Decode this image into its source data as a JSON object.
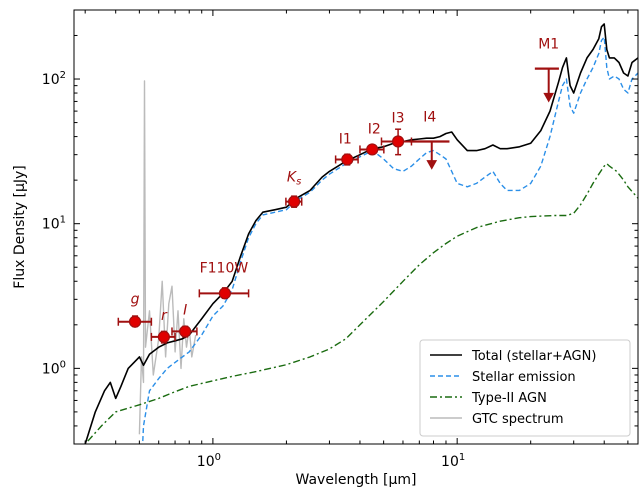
{
  "chart_data": {
    "type": "line",
    "xscale": "log",
    "yscale": "log",
    "xlim": [
      0.27,
      55
    ],
    "ylim": [
      0.3,
      300
    ],
    "xlabel": "Wavelength [μm]",
    "ylabel": "Flux Density [μJy]",
    "x_ticks": [
      {
        "value": 1,
        "base": "10",
        "exp": "0"
      },
      {
        "value": 10,
        "base": "10",
        "exp": "1"
      }
    ],
    "y_ticks": [
      {
        "value": 1,
        "base": "10",
        "exp": "0"
      },
      {
        "value": 10,
        "base": "10",
        "exp": "1"
      },
      {
        "value": 100,
        "base": "10",
        "exp": "2"
      }
    ],
    "legend_position": "bottom-right",
    "legend": [
      {
        "label": "Total (stellar+AGN)",
        "color": "#000000",
        "dash": "solid"
      },
      {
        "label": "Stellar emission",
        "color": "#2b8fe8",
        "dash": "dashed"
      },
      {
        "label": "Type-II AGN",
        "color": "#1a6b10",
        "dash": "dashdot"
      },
      {
        "label": "GTC spectrum",
        "color": "#bbbbbb",
        "dash": "solid"
      }
    ],
    "series": [
      {
        "name": "Total (stellar+AGN)",
        "color": "#000000",
        "dash": "solid",
        "points": [
          [
            0.27,
            0.18
          ],
          [
            0.3,
            0.3
          ],
          [
            0.33,
            0.5
          ],
          [
            0.36,
            0.7
          ],
          [
            0.38,
            0.8
          ],
          [
            0.4,
            0.62
          ],
          [
            0.42,
            0.75
          ],
          [
            0.45,
            1.0
          ],
          [
            0.5,
            1.2
          ],
          [
            0.52,
            1.05
          ],
          [
            0.55,
            1.25
          ],
          [
            0.6,
            1.4
          ],
          [
            0.65,
            1.5
          ],
          [
            0.7,
            1.55
          ],
          [
            0.75,
            1.6
          ],
          [
            0.8,
            1.7
          ],
          [
            0.9,
            2.2
          ],
          [
            1.0,
            2.8
          ],
          [
            1.1,
            3.3
          ],
          [
            1.2,
            4.0
          ],
          [
            1.3,
            6.0
          ],
          [
            1.4,
            8.5
          ],
          [
            1.5,
            10.5
          ],
          [
            1.6,
            12.0
          ],
          [
            1.8,
            12.5
          ],
          [
            2.0,
            13.0
          ],
          [
            2.2,
            15.0
          ],
          [
            2.5,
            17.0
          ],
          [
            2.8,
            21.0
          ],
          [
            3.0,
            23.0
          ],
          [
            3.5,
            27.0
          ],
          [
            4.0,
            30.0
          ],
          [
            4.5,
            33.0
          ],
          [
            5.0,
            34.0
          ],
          [
            5.5,
            36.0
          ],
          [
            6.0,
            37.0
          ],
          [
            6.5,
            38.0
          ],
          [
            7.0,
            38.5
          ],
          [
            7.5,
            39.0
          ],
          [
            8.0,
            39.0
          ],
          [
            8.5,
            40.0
          ],
          [
            9.0,
            42.0
          ],
          [
            9.5,
            43.0
          ],
          [
            10.0,
            38.0
          ],
          [
            11.0,
            32.0
          ],
          [
            12.0,
            32.0
          ],
          [
            13.0,
            33.0
          ],
          [
            14.0,
            35.0
          ],
          [
            15.0,
            33.0
          ],
          [
            16.0,
            33.0
          ],
          [
            18.0,
            34.0
          ],
          [
            20.0,
            36.0
          ],
          [
            22.0,
            44.0
          ],
          [
            24.0,
            60.0
          ],
          [
            26.0,
            95.0
          ],
          [
            27.0,
            120.0
          ],
          [
            28.0,
            140.0
          ],
          [
            29.0,
            90.0
          ],
          [
            30.0,
            80.0
          ],
          [
            32.0,
            110.0
          ],
          [
            34.0,
            140.0
          ],
          [
            36.0,
            160.0
          ],
          [
            38.0,
            190.0
          ],
          [
            39.0,
            230.0
          ],
          [
            40.0,
            240.0
          ],
          [
            41.0,
            160.0
          ],
          [
            42.0,
            140.0
          ],
          [
            44.0,
            140.0
          ],
          [
            46.0,
            130.0
          ],
          [
            48.0,
            110.0
          ],
          [
            50.0,
            105.0
          ],
          [
            52.0,
            130.0
          ],
          [
            55.0,
            140.0
          ]
        ]
      },
      {
        "name": "Stellar emission",
        "color": "#2b8fe8",
        "dash": "dashed",
        "points": [
          [
            0.5,
            0.1
          ],
          [
            0.52,
            0.4
          ],
          [
            0.55,
            0.7
          ],
          [
            0.6,
            0.85
          ],
          [
            0.65,
            1.0
          ],
          [
            0.7,
            1.1
          ],
          [
            0.75,
            1.2
          ],
          [
            0.8,
            1.3
          ],
          [
            0.9,
            1.7
          ],
          [
            1.0,
            2.3
          ],
          [
            1.1,
            2.7
          ],
          [
            1.2,
            3.5
          ],
          [
            1.3,
            5.5
          ],
          [
            1.4,
            8.0
          ],
          [
            1.5,
            10.0
          ],
          [
            1.6,
            11.5
          ],
          [
            1.8,
            12.0
          ],
          [
            2.0,
            12.5
          ],
          [
            2.2,
            14.5
          ],
          [
            2.5,
            16.5
          ],
          [
            2.8,
            20.0
          ],
          [
            3.0,
            22.0
          ],
          [
            3.5,
            26.0
          ],
          [
            4.0,
            29.0
          ],
          [
            4.5,
            32.0
          ],
          [
            5.0,
            28.0
          ],
          [
            5.5,
            24.0
          ],
          [
            6.0,
            23.0
          ],
          [
            6.5,
            25.0
          ],
          [
            7.0,
            28.0
          ],
          [
            7.5,
            31.0
          ],
          [
            8.0,
            32.0
          ],
          [
            8.5,
            30.0
          ],
          [
            9.0,
            28.0
          ],
          [
            10.0,
            19.0
          ],
          [
            11.0,
            18.0
          ],
          [
            12.0,
            19.0
          ],
          [
            13.0,
            21.0
          ],
          [
            14.0,
            23.0
          ],
          [
            15.0,
            19.0
          ],
          [
            16.0,
            17.0
          ],
          [
            18.0,
            17.0
          ],
          [
            20.0,
            19.0
          ],
          [
            22.0,
            25.0
          ],
          [
            24.0,
            40.0
          ],
          [
            26.0,
            70.0
          ],
          [
            27.0,
            90.0
          ],
          [
            28.0,
            100.0
          ],
          [
            29.0,
            65.0
          ],
          [
            30.0,
            58.0
          ],
          [
            32.0,
            80.0
          ],
          [
            34.0,
            100.0
          ],
          [
            36.0,
            120.0
          ],
          [
            38.0,
            150.0
          ],
          [
            39.0,
            185.0
          ],
          [
            40.0,
            195.0
          ],
          [
            41.0,
            120.0
          ],
          [
            42.0,
            100.0
          ],
          [
            44.0,
            105.0
          ],
          [
            46.0,
            100.0
          ],
          [
            48.0,
            85.0
          ],
          [
            50.0,
            80.0
          ],
          [
            52.0,
            100.0
          ],
          [
            55.0,
            110.0
          ]
        ]
      },
      {
        "name": "Type-II AGN",
        "color": "#1a6b10",
        "dash": "dashdot",
        "points": [
          [
            0.27,
            0.16
          ],
          [
            0.3,
            0.3
          ],
          [
            0.35,
            0.4
          ],
          [
            0.4,
            0.5
          ],
          [
            0.5,
            0.56
          ],
          [
            0.6,
            0.62
          ],
          [
            0.7,
            0.69
          ],
          [
            0.8,
            0.75
          ],
          [
            1.0,
            0.82
          ],
          [
            1.2,
            0.88
          ],
          [
            1.5,
            0.95
          ],
          [
            2.0,
            1.06
          ],
          [
            2.5,
            1.2
          ],
          [
            3.0,
            1.36
          ],
          [
            3.5,
            1.6
          ],
          [
            4.0,
            2.0
          ],
          [
            5.0,
            2.9
          ],
          [
            6.0,
            4.0
          ],
          [
            7.0,
            5.2
          ],
          [
            8.0,
            6.3
          ],
          [
            9.0,
            7.3
          ],
          [
            10.0,
            8.2
          ],
          [
            12.0,
            9.4
          ],
          [
            15.0,
            10.4
          ],
          [
            18.0,
            11.0
          ],
          [
            20.0,
            11.2
          ],
          [
            25.0,
            11.4
          ],
          [
            28.0,
            11.4
          ],
          [
            30.0,
            11.8
          ],
          [
            32.0,
            13.5
          ],
          [
            34.0,
            16.0
          ],
          [
            36.0,
            19.0
          ],
          [
            38.0,
            22.0
          ],
          [
            40.0,
            25.0
          ],
          [
            41.0,
            26.0
          ],
          [
            42.0,
            25.0
          ],
          [
            45.0,
            23.0
          ],
          [
            48.0,
            20.0
          ],
          [
            50.0,
            18.0
          ],
          [
            55.0,
            15.0
          ]
        ]
      },
      {
        "name": "GTC spectrum",
        "color": "#bbbbbb",
        "dash": "solid",
        "points": [
          [
            0.5,
            0.35
          ],
          [
            0.51,
            1.2
          ],
          [
            0.52,
            0.8
          ],
          [
            0.525,
            97.0
          ],
          [
            0.53,
            1.4
          ],
          [
            0.55,
            2.5
          ],
          [
            0.57,
            0.9
          ],
          [
            0.6,
            1.6
          ],
          [
            0.62,
            4.0
          ],
          [
            0.64,
            1.2
          ],
          [
            0.66,
            2.8
          ],
          [
            0.68,
            3.7
          ],
          [
            0.7,
            1.3
          ],
          [
            0.72,
            2.5
          ],
          [
            0.74,
            1.0
          ],
          [
            0.76,
            2.2
          ],
          [
            0.78,
            1.4
          ],
          [
            0.8,
            1.9
          ],
          [
            0.82,
            1.2
          ],
          [
            0.85,
            1.7
          ]
        ]
      }
    ],
    "photometry": [
      {
        "band": "g",
        "wavelength": 0.48,
        "flux": 2.1,
        "xerr": [
          0.41,
          0.56
        ],
        "yerr": [
          1.95,
          2.3
        ]
      },
      {
        "band": "r",
        "wavelength": 0.63,
        "flux": 1.65,
        "xerr": [
          0.56,
          0.7
        ],
        "yerr": [
          1.5,
          1.8
        ]
      },
      {
        "band": "I",
        "wavelength": 0.77,
        "flux": 1.8,
        "xerr": [
          0.68,
          0.86
        ],
        "yerr": [
          1.65,
          1.95
        ]
      },
      {
        "band": "F110W",
        "wavelength": 1.12,
        "flux": 3.3,
        "xerr": [
          0.88,
          1.4
        ],
        "yerr": [
          3.05,
          3.6
        ]
      },
      {
        "band": "Ks",
        "wavelength": 2.15,
        "flux": 14.2,
        "xerr": [
          1.99,
          2.31
        ],
        "yerr": [
          13.0,
          15.5
        ]
      },
      {
        "band": "I1",
        "wavelength": 3.55,
        "flux": 27.8,
        "xerr": [
          3.18,
          3.93
        ],
        "yerr": [
          25.5,
          30.2
        ]
      },
      {
        "band": "I2",
        "wavelength": 4.49,
        "flux": 32.6,
        "xerr": [
          4.0,
          5.01
        ],
        "yerr": [
          30.8,
          34.4
        ]
      },
      {
        "band": "I3",
        "wavelength": 5.73,
        "flux": 37.0,
        "xerr": [
          4.9,
          6.5
        ],
        "yerr": [
          30.0,
          45.0
        ]
      }
    ],
    "upper_limits": [
      {
        "band": "I4",
        "wavelength": 7.87,
        "flux": 37.0,
        "xerr": [
          6.4,
          9.3
        ],
        "arrow_to": 24.0
      },
      {
        "band": "M1",
        "wavelength": 23.7,
        "flux": 118.0,
        "xerr": [
          20.8,
          26.1
        ],
        "arrow_to": 70.0
      }
    ],
    "band_label_color": "#a01010",
    "marker_color": "#e00000"
  }
}
